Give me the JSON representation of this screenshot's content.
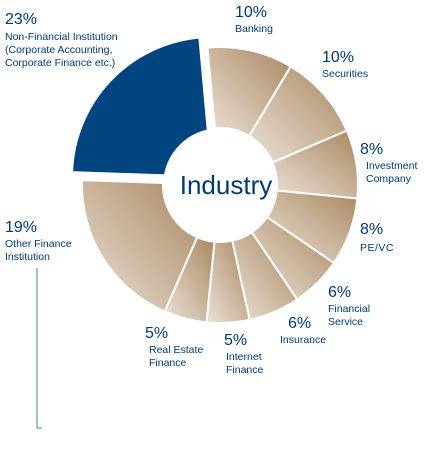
{
  "chart_data": {
    "type": "pie",
    "title": "Industry",
    "unit": "%",
    "slices": [
      {
        "value": 23,
        "pct_label": "23%",
        "lines": [
          "Non-Financial Institution",
          "(Corporate Accounting,",
          "Corporate Finance etc.)"
        ]
      },
      {
        "value": 10,
        "pct_label": "10%",
        "lines": [
          "Banking"
        ]
      },
      {
        "value": 10,
        "pct_label": "10%",
        "lines": [
          "Securities"
        ]
      },
      {
        "value": 8,
        "pct_label": "8%",
        "lines": [
          "Investment",
          "Company"
        ]
      },
      {
        "value": 8,
        "pct_label": "8%",
        "lines": [
          "PE/VC"
        ]
      },
      {
        "value": 6,
        "pct_label": "6%",
        "lines": [
          "Financial",
          "Service"
        ]
      },
      {
        "value": 6,
        "pct_label": "6%",
        "lines": [
          "Insurance"
        ]
      },
      {
        "value": 5,
        "pct_label": "5%",
        "lines": [
          "Internet",
          "Finance"
        ]
      },
      {
        "value": 5,
        "pct_label": "5%",
        "lines": [
          "Real Estate",
          "Finance"
        ]
      },
      {
        "value": 19,
        "pct_label": "19%",
        "lines": [
          "Other Finance",
          "Institution"
        ]
      }
    ],
    "colors": {
      "highlight": "#00457f",
      "gradient_dark": "#a8875f",
      "gradient_light": "#ebe2d8",
      "text": "#003a74",
      "bracket": "#4a7aa8"
    }
  }
}
